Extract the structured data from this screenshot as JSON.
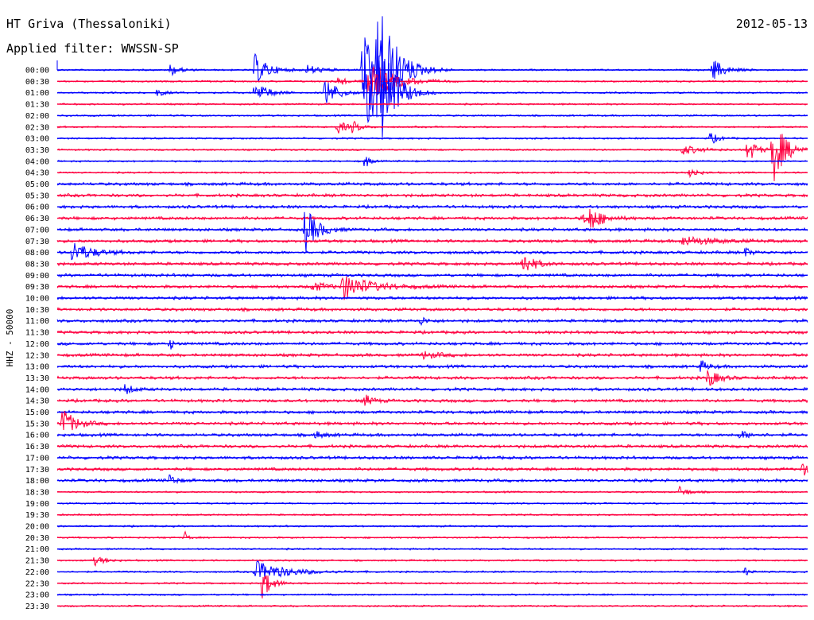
{
  "header": {
    "station": "HT Griva (Thessaloniki)",
    "date": "2012-05-13",
    "filter": "Applied filter: WWSSN-SP"
  },
  "channel_label": "HHZ - 50000",
  "colors": {
    "blue": "#0000ff",
    "red": "#ff0040",
    "text": "#000000",
    "background": "#ffffff"
  },
  "chart_data": {
    "type": "line",
    "subtype": "helicorder",
    "row_labels": [
      "00:00",
      "00:30",
      "01:00",
      "01:30",
      "02:00",
      "02:30",
      "03:00",
      "03:30",
      "04:00",
      "04:30",
      "05:00",
      "05:30",
      "06:00",
      "06:30",
      "07:00",
      "07:30",
      "08:00",
      "08:30",
      "09:00",
      "09:30",
      "10:00",
      "10:30",
      "11:00",
      "11:30",
      "12:00",
      "12:30",
      "13:00",
      "13:30",
      "14:00",
      "14:30",
      "15:00",
      "15:30",
      "16:00",
      "16:30",
      "17:00",
      "17:30",
      "18:00",
      "18:30",
      "19:00",
      "19:30",
      "20:00",
      "20:30",
      "21:00",
      "21:30",
      "22:00",
      "22:30",
      "23:00",
      "23:30"
    ],
    "row_colors": [
      "blue",
      "red"
    ],
    "x_range_minutes": [
      0,
      30
    ],
    "events": [
      {
        "row": "00:00",
        "minute": 4.5,
        "amp": 8,
        "dur": 0.6
      },
      {
        "row": "00:00",
        "minute": 7.9,
        "amp": 20,
        "dur": 0.9
      },
      {
        "row": "00:00",
        "minute": 10.0,
        "amp": 6,
        "dur": 1.0
      },
      {
        "row": "00:00",
        "minute": 12.2,
        "amp": 55,
        "dur": 0.7
      },
      {
        "row": "00:00",
        "minute": 12.8,
        "amp": 90,
        "dur": 1.2
      },
      {
        "row": "00:00",
        "minute": 26.2,
        "amp": 14,
        "dur": 0.8
      },
      {
        "row": "00:30",
        "minute": 12.4,
        "amp": 30,
        "dur": 1.5
      },
      {
        "row": "00:30",
        "minute": 11.2,
        "amp": 6,
        "dur": 0.6
      },
      {
        "row": "01:00",
        "minute": 7.9,
        "amp": 16,
        "dur": 0.8
      },
      {
        "row": "01:00",
        "minute": 10.7,
        "amp": 20,
        "dur": 0.8
      },
      {
        "row": "01:00",
        "minute": 12.3,
        "amp": 50,
        "dur": 1.0
      },
      {
        "row": "01:00",
        "minute": 12.9,
        "amp": 60,
        "dur": 1.0
      },
      {
        "row": "01:00",
        "minute": 4.0,
        "amp": 5,
        "dur": 0.5
      },
      {
        "row": "02:30",
        "minute": 11.2,
        "amp": 9,
        "dur": 0.6
      },
      {
        "row": "02:30",
        "minute": 11.8,
        "amp": 7,
        "dur": 0.5
      },
      {
        "row": "03:00",
        "minute": 26.1,
        "amp": 8,
        "dur": 0.5
      },
      {
        "row": "03:30",
        "minute": 27.6,
        "amp": 16,
        "dur": 0.6
      },
      {
        "row": "03:30",
        "minute": 28.6,
        "amp": 45,
        "dur": 0.8
      },
      {
        "row": "03:30",
        "minute": 25.0,
        "amp": 6,
        "dur": 1.2
      },
      {
        "row": "04:00",
        "minute": 12.3,
        "amp": 10,
        "dur": 0.3
      },
      {
        "row": "04:30",
        "minute": 25.3,
        "amp": 7,
        "dur": 0.5
      },
      {
        "row": "06:30",
        "minute": 21.3,
        "amp": 12,
        "dur": 0.8
      },
      {
        "row": "06:30",
        "minute": 21.0,
        "amp": 6,
        "dur": 1.0
      },
      {
        "row": "07:00",
        "minute": 9.9,
        "amp": 30,
        "dur": 0.8
      },
      {
        "row": "07:30",
        "minute": 25.0,
        "amp": 6,
        "dur": 2.0
      },
      {
        "row": "08:00",
        "minute": 0.6,
        "amp": 14,
        "dur": 1.2
      },
      {
        "row": "08:00",
        "minute": 27.5,
        "amp": 6,
        "dur": 0.4
      },
      {
        "row": "08:30",
        "minute": 18.6,
        "amp": 16,
        "dur": 0.7
      },
      {
        "row": "09:30",
        "minute": 11.4,
        "amp": 16,
        "dur": 1.8
      },
      {
        "row": "09:30",
        "minute": 10.2,
        "amp": 6,
        "dur": 1.0
      },
      {
        "row": "11:00",
        "minute": 14.5,
        "amp": 6,
        "dur": 0.4
      },
      {
        "row": "12:00",
        "minute": 4.5,
        "amp": 7,
        "dur": 0.3
      },
      {
        "row": "12:30",
        "minute": 14.6,
        "amp": 5,
        "dur": 1.0
      },
      {
        "row": "13:00",
        "minute": 25.7,
        "amp": 8,
        "dur": 0.5
      },
      {
        "row": "13:30",
        "minute": 26.0,
        "amp": 12,
        "dur": 0.7
      },
      {
        "row": "14:00",
        "minute": 2.7,
        "amp": 7,
        "dur": 0.5
      },
      {
        "row": "14:30",
        "minute": 12.3,
        "amp": 8,
        "dur": 0.5
      },
      {
        "row": "15:30",
        "minute": 0.2,
        "amp": 20,
        "dur": 0.8
      },
      {
        "row": "16:00",
        "minute": 10.3,
        "amp": 5,
        "dur": 0.6
      },
      {
        "row": "16:00",
        "minute": 27.3,
        "amp": 5,
        "dur": 0.8
      },
      {
        "row": "17:30",
        "minute": 29.8,
        "amp": 10,
        "dur": 0.3
      },
      {
        "row": "18:00",
        "minute": 4.5,
        "amp": 8,
        "dur": 0.4
      },
      {
        "row": "18:30",
        "minute": 24.9,
        "amp": 8,
        "dur": 0.5
      },
      {
        "row": "20:30",
        "minute": 5.1,
        "amp": 8,
        "dur": 0.2
      },
      {
        "row": "21:30",
        "minute": 1.5,
        "amp": 6,
        "dur": 0.7
      },
      {
        "row": "22:00",
        "minute": 7.9,
        "amp": 14,
        "dur": 2.0
      },
      {
        "row": "22:00",
        "minute": 27.5,
        "amp": 6,
        "dur": 0.3
      },
      {
        "row": "22:30",
        "minute": 8.2,
        "amp": 20,
        "dur": 0.6
      }
    ]
  }
}
